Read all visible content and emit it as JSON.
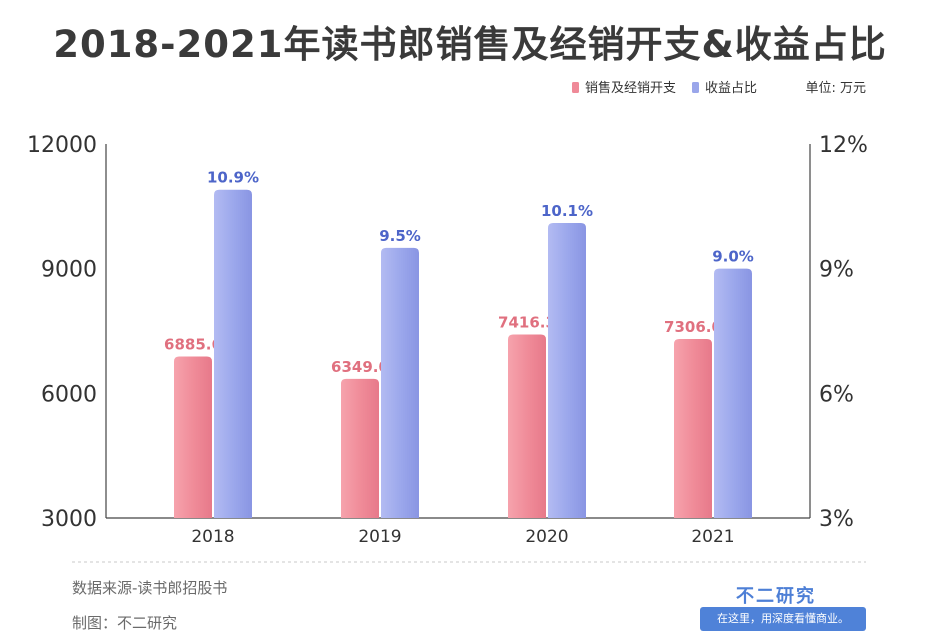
{
  "title": "2018-2021年读书郎销售及经销开支&收益占比",
  "unit_label": "单位: 万元",
  "footer": {
    "source": "数据来源-读书郎招股书",
    "credit": "制图：不二研究"
  },
  "brand": {
    "name": "不二研究",
    "slogan": "在这里，用深度看懂商业。",
    "color": "#4f82d8"
  },
  "chart_data": {
    "type": "bar",
    "categories": [
      "2018",
      "2019",
      "2020",
      "2021"
    ],
    "series": [
      {
        "name": "销售及经销开支",
        "axis": "left",
        "color": "#ef8a98",
        "values": [
          6885.6,
          6349.0,
          7416.3,
          7306.0
        ],
        "labels": [
          "6885.6",
          "6349.0",
          "7416.3",
          "7306.0"
        ]
      },
      {
        "name": "收益占比",
        "axis": "right",
        "color": "#9aa6ea",
        "values": [
          10.9,
          9.5,
          10.1,
          9.0
        ],
        "labels": [
          "10.9%",
          "9.5%",
          "10.1%",
          "9.0%"
        ]
      }
    ],
    "y_left": {
      "ylim": [
        3000,
        12000
      ],
      "ticks": [
        "3000",
        "6000",
        "9000",
        "12000"
      ]
    },
    "y_right": {
      "ylim": [
        3,
        12
      ],
      "ticks": [
        "3%",
        "6%",
        "9%",
        "12%"
      ]
    },
    "grid": false,
    "legend_position": "top-right"
  }
}
